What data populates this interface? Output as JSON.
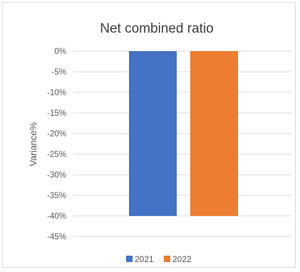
{
  "chart_data": {
    "type": "bar",
    "title": "Net combined ratio",
    "xlabel": "",
    "ylabel": "Variance%",
    "categories": [
      ""
    ],
    "series": [
      {
        "name": "2021",
        "values": [
          -40
        ],
        "color": "#4472c4"
      },
      {
        "name": "2022",
        "values": [
          -40
        ],
        "color": "#ed7d31"
      }
    ],
    "ylim": [
      -45,
      0
    ],
    "yticks": [
      0,
      -5,
      -10,
      -15,
      -20,
      -25,
      -30,
      -35,
      -40,
      -45
    ],
    "ytick_labels": [
      "0%",
      "-5%",
      "-10%",
      "-15%",
      "-20%",
      "-25%",
      "-30%",
      "-35%",
      "-40%",
      "-45%"
    ],
    "grid": true,
    "legend": "bottom"
  }
}
